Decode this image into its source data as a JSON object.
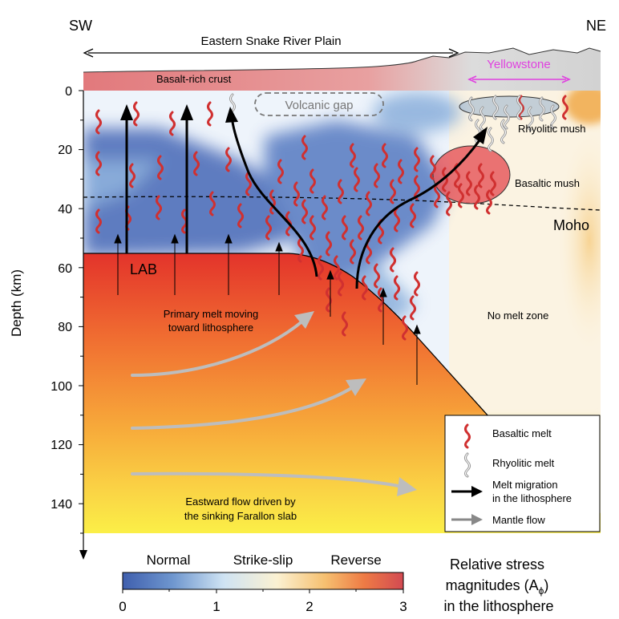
{
  "directions": {
    "left": "SW",
    "right": "NE"
  },
  "regions": {
    "plain": "Eastern Snake River Plain",
    "yellowstone": "Yellowstone"
  },
  "labels": {
    "crust": "Basalt-rich crust",
    "volcanic_gap": "Volcanic gap",
    "rhyolitic_mush": "Rhyolitic mush",
    "basaltic_mush": "Basaltic mush",
    "moho": "Moho",
    "lab": "LAB",
    "primary_melt_1": "Primary melt moving",
    "primary_melt_2": "toward lithosphere",
    "no_melt": "No melt zone",
    "eastward_1": "Eastward flow driven by",
    "eastward_2": "the sinking Farallon slab"
  },
  "axis": {
    "label": "Depth (km)",
    "ticks": [
      "0",
      "20",
      "40",
      "60",
      "80",
      "100",
      "120",
      "140"
    ]
  },
  "legend": {
    "basaltic": "Basaltic melt",
    "rhyolitic": "Rhyolitic melt",
    "migration_1": "Melt migration",
    "migration_2": "in the lithosphere",
    "mantle": "Mantle flow"
  },
  "colorbar": {
    "regimes": [
      "Normal",
      "Strike-slip",
      "Reverse"
    ],
    "ticks": [
      "0",
      "1",
      "2",
      "3"
    ],
    "title_1": "Relative stress",
    "title_2": "magnitudes (A",
    "title_sub": "ϕ",
    "title_close": ")",
    "title_3": "in the lithosphere",
    "colors": [
      "#3f5fae",
      "#6f97cf",
      "#cfe3f3",
      "#fbf1d2",
      "#f6c070",
      "#ee7b45",
      "#d34a52"
    ]
  }
}
